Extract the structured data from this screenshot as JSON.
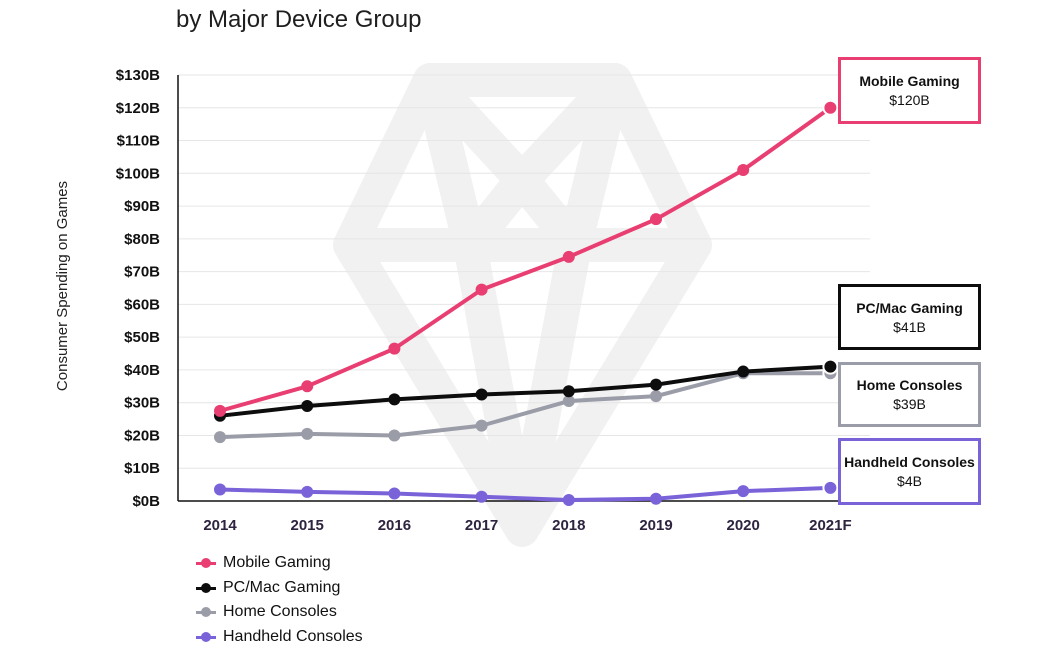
{
  "subtitle": "by Major Device Group",
  "chart_data": {
    "type": "line",
    "title": "",
    "subtitle": "by Major Device Group",
    "ylabel": "Consumer Spending on Games",
    "xlabel": "",
    "categories": [
      "2014",
      "2015",
      "2016",
      "2017",
      "2018",
      "2019",
      "2020",
      "2021F"
    ],
    "y_ticks": [
      "$0B",
      "$10B",
      "$20B",
      "$30B",
      "$40B",
      "$50B",
      "$60B",
      "$70B",
      "$80B",
      "$90B",
      "$100B",
      "$110B",
      "$120B",
      "$130B"
    ],
    "ylim": [
      0,
      130
    ],
    "grid": true,
    "legend_position": "bottom-left",
    "series": [
      {
        "name": "Mobile Gaming",
        "color": "#e83e72",
        "values": [
          27.5,
          35,
          46.5,
          64.5,
          74.5,
          86,
          101,
          120
        ],
        "callout_label": "Mobile Gaming",
        "callout_value": "$120B"
      },
      {
        "name": "PC/Mac Gaming",
        "color": "#0d0d0d",
        "values": [
          26,
          29,
          31,
          32.5,
          33.5,
          35.5,
          39.5,
          41
        ],
        "callout_label": "PC/Mac Gaming",
        "callout_value": "$41B"
      },
      {
        "name": "Home Consoles",
        "color": "#9a9ca8",
        "values": [
          19.5,
          20.5,
          20,
          23,
          30.5,
          32,
          39,
          39
        ],
        "callout_label": "Home Consoles",
        "callout_value": "$39B"
      },
      {
        "name": "Handheld Consoles",
        "color": "#7a62d9",
        "values": [
          3.5,
          2.8,
          2.3,
          1.3,
          0.3,
          0.7,
          3,
          4
        ],
        "callout_label": "Handheld Consoles",
        "callout_value": "$4B"
      }
    ]
  }
}
